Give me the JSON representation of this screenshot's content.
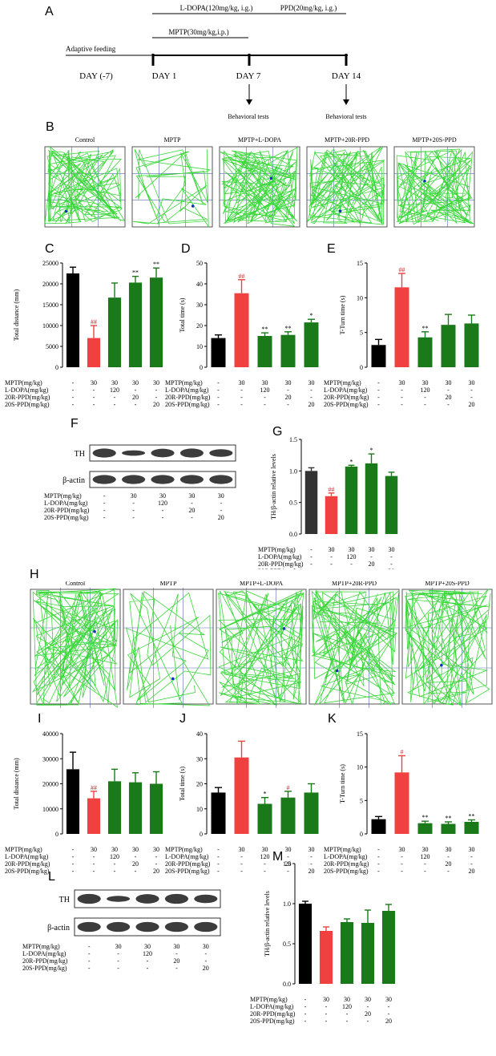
{
  "panel_letters": {
    "A": "A",
    "B": "B",
    "C": "C",
    "D": "D",
    "E": "E",
    "F": "F",
    "G": "G",
    "H": "H",
    "I": "I",
    "J": "J",
    "K": "K",
    "L": "L",
    "M": "M"
  },
  "timeline": {
    "ldopa": "L-DOPA(120mg/kg, i.g.)",
    "ppd": "PPD(20mg/kg, i.g.)",
    "mptp": "MPTP(30mg/kg,i.p.)",
    "adaptive": "Adaptive feeding",
    "day_m7": "DAY (-7)",
    "day1": "DAY 1",
    "day7": "DAY 7",
    "day14": "DAY 14",
    "behav1": "Behavioral tests",
    "behav2": "Behavioral tests"
  },
  "track_titles_B": [
    "Control",
    "MPTP",
    "MPTP+L-DOPA",
    "MPTP+20R-PPD",
    "MPTP+20S-PPD"
  ],
  "track_titles_H": [
    "Control",
    "MPTP",
    "MPTP+L-DOPA",
    "MPTP+20R-PPD",
    "MPTP+20S-PPD"
  ],
  "dose_rows": [
    {
      "label": "MPTP(mg/kg)",
      "values": [
        "-",
        "30",
        "30",
        "30",
        "30"
      ]
    },
    {
      "label": "L-DOPA(mg/kg)",
      "values": [
        "-",
        "-",
        "120",
        "-",
        "-"
      ]
    },
    {
      "label": "20R-PPD(mg/kg)",
      "values": [
        "-",
        "-",
        "-",
        "20",
        "-"
      ]
    },
    {
      "label": "20S-PPD(mg/kg)",
      "values": [
        "-",
        "-",
        "-",
        "-",
        "20"
      ]
    }
  ],
  "western": {
    "th": "TH",
    "actin": "β-actin"
  },
  "colors": {
    "control": "#000000",
    "mptp": "#f04040",
    "treat": "#1a7a1a",
    "control_dark": "#333333",
    "track": "#3ad63a"
  },
  "chart_data": [
    {
      "id": "C",
      "type": "bar",
      "ylabel": "Total distance (mm)",
      "ylim": [
        0,
        25000
      ],
      "ticks": [
        "0",
        "5000",
        "10000",
        "15000",
        "20000",
        "25000"
      ],
      "values": [
        22500,
        7000,
        16700,
        20300,
        21500
      ],
      "errors": [
        1500,
        3000,
        3500,
        1500,
        2300
      ],
      "sig": [
        "",
        "##",
        "",
        "**",
        "**"
      ]
    },
    {
      "id": "D",
      "type": "bar",
      "ylabel": "Total time (s)",
      "ylim": [
        0,
        50
      ],
      "ticks": [
        "0",
        "10",
        "20",
        "30",
        "40",
        "50"
      ],
      "values": [
        14,
        35.5,
        15,
        15.5,
        21.5
      ],
      "errors": [
        1.5,
        6.5,
        1.5,
        1.5,
        1.5
      ],
      "sig": [
        "",
        "##",
        "**",
        "**",
        "*"
      ]
    },
    {
      "id": "E",
      "type": "bar",
      "ylabel": "T-Turn time (s)",
      "ylim": [
        0,
        15
      ],
      "ticks": [
        "0",
        "5",
        "10",
        "15"
      ],
      "values": [
        3.2,
        11.5,
        4.3,
        6.1,
        6.3
      ],
      "errors": [
        0.8,
        2,
        0.8,
        1.5,
        1.2
      ],
      "sig": [
        "",
        "##",
        "**",
        "",
        ""
      ]
    },
    {
      "id": "G",
      "type": "bar",
      "ylabel": "TH/β-actin relative levels",
      "ylim": [
        0,
        1.5
      ],
      "ticks": [
        "0.0",
        "0.5",
        "1.0",
        "1.5"
      ],
      "values": [
        1.0,
        0.6,
        1.07,
        1.12,
        0.92
      ],
      "errors": [
        0.05,
        0.05,
        0.02,
        0.15,
        0.06
      ],
      "sig": [
        "",
        "##",
        "*",
        "*",
        ""
      ]
    },
    {
      "id": "I",
      "type": "bar",
      "ylabel": "Total distance (mm)",
      "ylim": [
        0,
        40000
      ],
      "ticks": [
        "0",
        "10000",
        "20000",
        "30000",
        "40000"
      ],
      "values": [
        25800,
        14200,
        21000,
        20600,
        20000
      ],
      "errors": [
        6800,
        2800,
        4800,
        3800,
        4800
      ],
      "sig": [
        "",
        "##",
        "",
        "",
        ""
      ]
    },
    {
      "id": "J",
      "type": "bar",
      "ylabel": "Total time (s)",
      "ylim": [
        0,
        40
      ],
      "ticks": [
        "0",
        "10",
        "20",
        "30",
        "40"
      ],
      "values": [
        16.5,
        30.5,
        12,
        14.5,
        16.5
      ],
      "errors": [
        2,
        6.5,
        2.5,
        2.5,
        3.5
      ],
      "sig": [
        "",
        "",
        "*",
        "#",
        ""
      ]
    },
    {
      "id": "K",
      "type": "bar",
      "ylabel": "T-Turn time (s)",
      "ylim": [
        0,
        15
      ],
      "ticks": [
        "0",
        "5",
        "10",
        "15"
      ],
      "values": [
        2.2,
        9.2,
        1.6,
        1.5,
        1.8
      ],
      "errors": [
        0.4,
        2.5,
        0.3,
        0.3,
        0.3
      ],
      "sig": [
        "",
        "#",
        "**",
        "**",
        "**"
      ]
    },
    {
      "id": "M",
      "type": "bar",
      "ylabel": "TH/β-actin relative levels",
      "ylim": [
        0,
        1.5
      ],
      "ticks": [
        "0.0",
        "0.5",
        "1.0",
        "1.5"
      ],
      "values": [
        1.0,
        0.66,
        0.77,
        0.76,
        0.91
      ],
      "errors": [
        0.03,
        0.05,
        0.04,
        0.16,
        0.08
      ],
      "sig": [
        "",
        "",
        "",
        "",
        ""
      ]
    }
  ]
}
